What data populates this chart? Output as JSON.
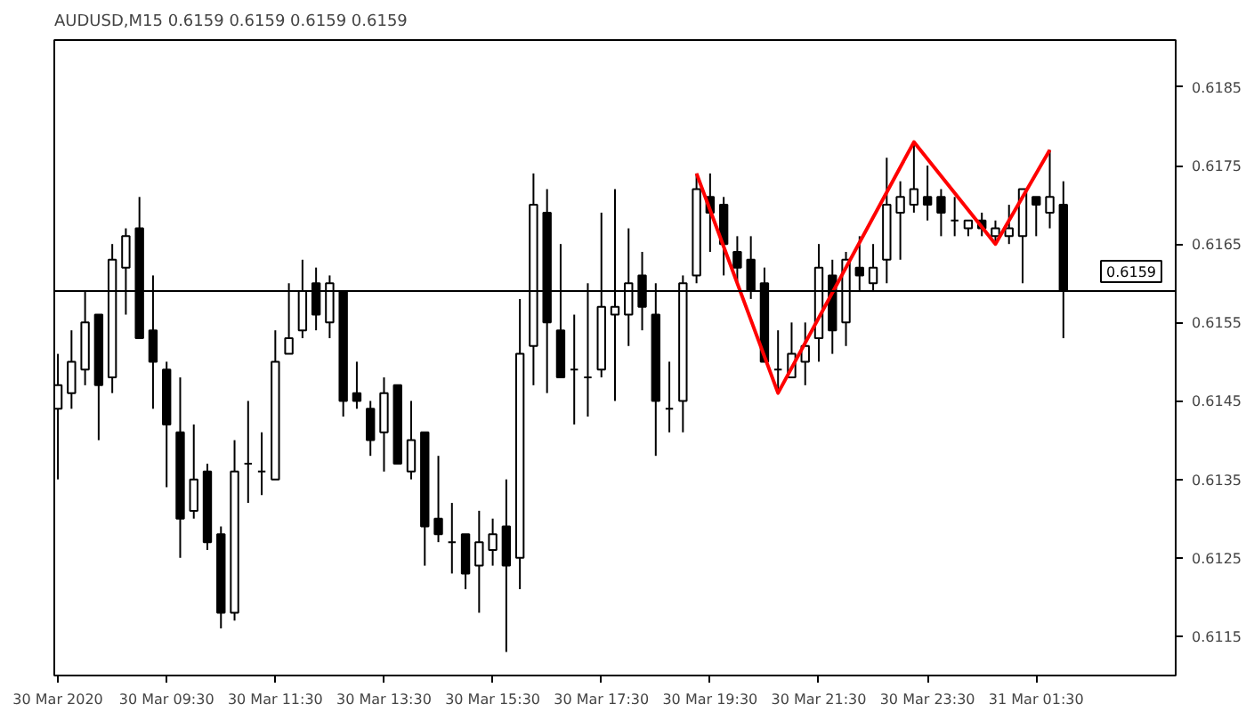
{
  "chart_data": {
    "type": "candlestick",
    "title": "AUDUSD,M15  0.6159 0.6159 0.6159 0.6159",
    "x": [
      "2020-03-30T07:30",
      "2020-03-30T07:45",
      "2020-03-30T08:00",
      "2020-03-30T08:15",
      "2020-03-30T08:30",
      "2020-03-30T08:45",
      "2020-03-30T09:00",
      "2020-03-30T09:15",
      "2020-03-30T09:30",
      "2020-03-30T09:45",
      "2020-03-30T10:00",
      "2020-03-30T10:15",
      "2020-03-30T10:30",
      "2020-03-30T10:45",
      "2020-03-30T11:00",
      "2020-03-30T11:15",
      "2020-03-30T11:30",
      "2020-03-30T11:45",
      "2020-03-30T12:00",
      "2020-03-30T12:15",
      "2020-03-30T12:30",
      "2020-03-30T12:45",
      "2020-03-30T13:00",
      "2020-03-30T13:15",
      "2020-03-30T13:30",
      "2020-03-30T13:45",
      "2020-03-30T14:00",
      "2020-03-30T14:15",
      "2020-03-30T14:30",
      "2020-03-30T14:45",
      "2020-03-30T15:00",
      "2020-03-30T15:15",
      "2020-03-30T15:30",
      "2020-03-30T15:45",
      "2020-03-30T16:00",
      "2020-03-30T16:15",
      "2020-03-30T16:30",
      "2020-03-30T16:45",
      "2020-03-30T17:00",
      "2020-03-30T17:15",
      "2020-03-30T17:30",
      "2020-03-30T17:45",
      "2020-03-30T18:00",
      "2020-03-30T18:15",
      "2020-03-30T18:30",
      "2020-03-30T18:45",
      "2020-03-30T19:00",
      "2020-03-30T19:15",
      "2020-03-30T19:30",
      "2020-03-30T19:45",
      "2020-03-30T20:00",
      "2020-03-30T20:15",
      "2020-03-30T20:30",
      "2020-03-30T20:45",
      "2020-03-30T21:00",
      "2020-03-30T21:15",
      "2020-03-30T21:30",
      "2020-03-30T21:45",
      "2020-03-30T22:00",
      "2020-03-30T22:15",
      "2020-03-30T22:30",
      "2020-03-30T22:45",
      "2020-03-30T23:00",
      "2020-03-30T23:15",
      "2020-03-30T23:30",
      "2020-03-30T23:45",
      "2020-03-31T00:00",
      "2020-03-31T00:15",
      "2020-03-31T00:30",
      "2020-03-31T00:45",
      "2020-03-31T01:00",
      "2020-03-31T01:15",
      "2020-03-31T01:30",
      "2020-03-31T01:45",
      "2020-03-31T02:00"
    ],
    "series": [
      {
        "color": "#000000",
        "ohlc": [
          [
            0.6144,
            0.6151,
            0.6135,
            0.6147
          ],
          [
            0.6146,
            0.6154,
            0.6144,
            0.615
          ],
          [
            0.6149,
            0.6159,
            0.6147,
            0.6155
          ],
          [
            0.6156,
            0.6156,
            0.614,
            0.6147
          ],
          [
            0.6148,
            0.6165,
            0.6146,
            0.6163
          ],
          [
            0.6162,
            0.6167,
            0.6156,
            0.6166
          ],
          [
            0.6167,
            0.6171,
            0.6153,
            0.6153
          ],
          [
            0.6154,
            0.6161,
            0.6144,
            0.615
          ],
          [
            0.6149,
            0.615,
            0.6134,
            0.6142
          ],
          [
            0.6141,
            0.6148,
            0.6125,
            0.613
          ],
          [
            0.6131,
            0.6142,
            0.613,
            0.6135
          ],
          [
            0.6136,
            0.6137,
            0.6126,
            0.6127
          ],
          [
            0.6128,
            0.6129,
            0.6116,
            0.6118
          ],
          [
            0.6118,
            0.614,
            0.6117,
            0.6136
          ],
          [
            0.6137,
            0.6145,
            0.6132,
            0.6137
          ],
          [
            0.6136,
            0.6141,
            0.6133,
            0.6136
          ],
          [
            0.6135,
            0.6154,
            0.6135,
            0.615
          ],
          [
            0.6151,
            0.616,
            0.6151,
            0.6153
          ],
          [
            0.6154,
            0.6163,
            0.6153,
            0.6159
          ],
          [
            0.616,
            0.6162,
            0.6154,
            0.6156
          ],
          [
            0.6155,
            0.6161,
            0.6153,
            0.616
          ],
          [
            0.6159,
            0.6159,
            0.6143,
            0.6145
          ],
          [
            0.6146,
            0.615,
            0.6144,
            0.6145
          ],
          [
            0.6144,
            0.6145,
            0.6138,
            0.614
          ],
          [
            0.6141,
            0.6148,
            0.6136,
            0.6146
          ],
          [
            0.6147,
            0.6147,
            0.6137,
            0.6137
          ],
          [
            0.6136,
            0.6145,
            0.6135,
            0.614
          ],
          [
            0.6141,
            0.6141,
            0.6124,
            0.6129
          ],
          [
            0.613,
            0.6138,
            0.6127,
            0.6128
          ],
          [
            0.6127,
            0.6132,
            0.6123,
            0.6127
          ],
          [
            0.6128,
            0.6128,
            0.6121,
            0.6123
          ],
          [
            0.6124,
            0.6131,
            0.6118,
            0.6127
          ],
          [
            0.6126,
            0.613,
            0.6124,
            0.6128
          ],
          [
            0.6129,
            0.6135,
            0.6113,
            0.6124
          ],
          [
            0.6125,
            0.6158,
            0.6121,
            0.6151
          ],
          [
            0.6152,
            0.6174,
            0.6147,
            0.617
          ],
          [
            0.6169,
            0.6172,
            0.6146,
            0.6155
          ],
          [
            0.6154,
            0.6165,
            0.6148,
            0.6148
          ],
          [
            0.6149,
            0.6156,
            0.6142,
            0.6149
          ],
          [
            0.6148,
            0.616,
            0.6143,
            0.6148
          ],
          [
            0.6149,
            0.6169,
            0.6148,
            0.6157
          ],
          [
            0.6156,
            0.6172,
            0.6145,
            0.6157
          ],
          [
            0.6156,
            0.6167,
            0.6152,
            0.616
          ],
          [
            0.6161,
            0.6164,
            0.6154,
            0.6157
          ],
          [
            0.6156,
            0.616,
            0.6138,
            0.6145
          ],
          [
            0.6144,
            0.615,
            0.6141,
            0.6144
          ],
          [
            0.6145,
            0.6161,
            0.6141,
            0.616
          ],
          [
            0.6161,
            0.6174,
            0.616,
            0.6172
          ],
          [
            0.6171,
            0.6174,
            0.6164,
            0.6169
          ],
          [
            0.617,
            0.6171,
            0.6161,
            0.6165
          ],
          [
            0.6164,
            0.6166,
            0.616,
            0.6162
          ],
          [
            0.6163,
            0.6166,
            0.6158,
            0.6159
          ],
          [
            0.616,
            0.6162,
            0.615,
            0.615
          ],
          [
            0.6149,
            0.6154,
            0.6146,
            0.6149
          ],
          [
            0.6148,
            0.6155,
            0.6148,
            0.6151
          ],
          [
            0.615,
            0.6155,
            0.6147,
            0.6152
          ],
          [
            0.6153,
            0.6165,
            0.615,
            0.6162
          ],
          [
            0.6161,
            0.6163,
            0.6151,
            0.6154
          ],
          [
            0.6155,
            0.6164,
            0.6152,
            0.6163
          ],
          [
            0.6162,
            0.6166,
            0.6159,
            0.6161
          ],
          [
            0.616,
            0.6165,
            0.6159,
            0.6162
          ],
          [
            0.6163,
            0.6176,
            0.616,
            0.617
          ],
          [
            0.6169,
            0.6173,
            0.6163,
            0.6171
          ],
          [
            0.617,
            0.6178,
            0.6169,
            0.6172
          ],
          [
            0.6171,
            0.6175,
            0.6168,
            0.617
          ],
          [
            0.6171,
            0.6172,
            0.6166,
            0.6169
          ],
          [
            0.6168,
            0.6171,
            0.6166,
            0.6168
          ],
          [
            0.6167,
            0.6168,
            0.6166,
            0.6168
          ],
          [
            0.6168,
            0.6169,
            0.6166,
            0.6167
          ],
          [
            0.6166,
            0.6168,
            0.6165,
            0.6167
          ],
          [
            0.6166,
            0.617,
            0.6165,
            0.6167
          ],
          [
            0.6166,
            0.6172,
            0.616,
            0.6172
          ],
          [
            0.6171,
            0.6171,
            0.6166,
            0.617
          ],
          [
            0.6169,
            0.6177,
            0.6167,
            0.6171
          ],
          [
            0.617,
            0.6173,
            0.6153,
            0.6159
          ]
        ]
      },
      {
        "type": "line",
        "color": "#ff0000",
        "x": [
          "2020-03-30T19:15",
          "2020-03-30T20:45",
          "2020-03-30T23:15",
          "2020-03-31T00:45",
          "2020-03-31T01:45"
        ],
        "values": [
          0.6174,
          0.6146,
          0.6178,
          0.6165,
          0.6177
        ]
      }
    ],
    "ref_lines": [
      {
        "axis": "y",
        "value": 0.6159,
        "label": "0.6159",
        "color": "#000000"
      }
    ],
    "xlim": [
      "2020-03-30T07:26",
      "2020-03-31T04:04"
    ],
    "xticks": [
      {
        "value": "2020-03-30T07:30",
        "label": "30 Mar 2020"
      },
      {
        "value": "2020-03-30T09:30",
        "label": "30 Mar 09:30"
      },
      {
        "value": "2020-03-30T11:30",
        "label": "30 Mar 11:30"
      },
      {
        "value": "2020-03-30T13:30",
        "label": "30 Mar 13:30"
      },
      {
        "value": "2020-03-30T15:30",
        "label": "30 Mar 15:30"
      },
      {
        "value": "2020-03-30T17:30",
        "label": "30 Mar 17:30"
      },
      {
        "value": "2020-03-30T19:30",
        "label": "30 Mar 19:30"
      },
      {
        "value": "2020-03-30T21:30",
        "label": "30 Mar 21:30"
      },
      {
        "value": "2020-03-30T23:30",
        "label": "30 Mar 23:30"
      },
      {
        "value": "2020-03-31T01:30",
        "label": "31 Mar 01:30"
      }
    ],
    "ylim": [
      0.611,
      0.6191
    ],
    "yticks": [
      0.6115,
      0.6125,
      0.6135,
      0.6145,
      0.6155,
      0.6165,
      0.6175,
      0.6185
    ],
    "marker": "none",
    "line_style": "solid",
    "grid": false
  }
}
